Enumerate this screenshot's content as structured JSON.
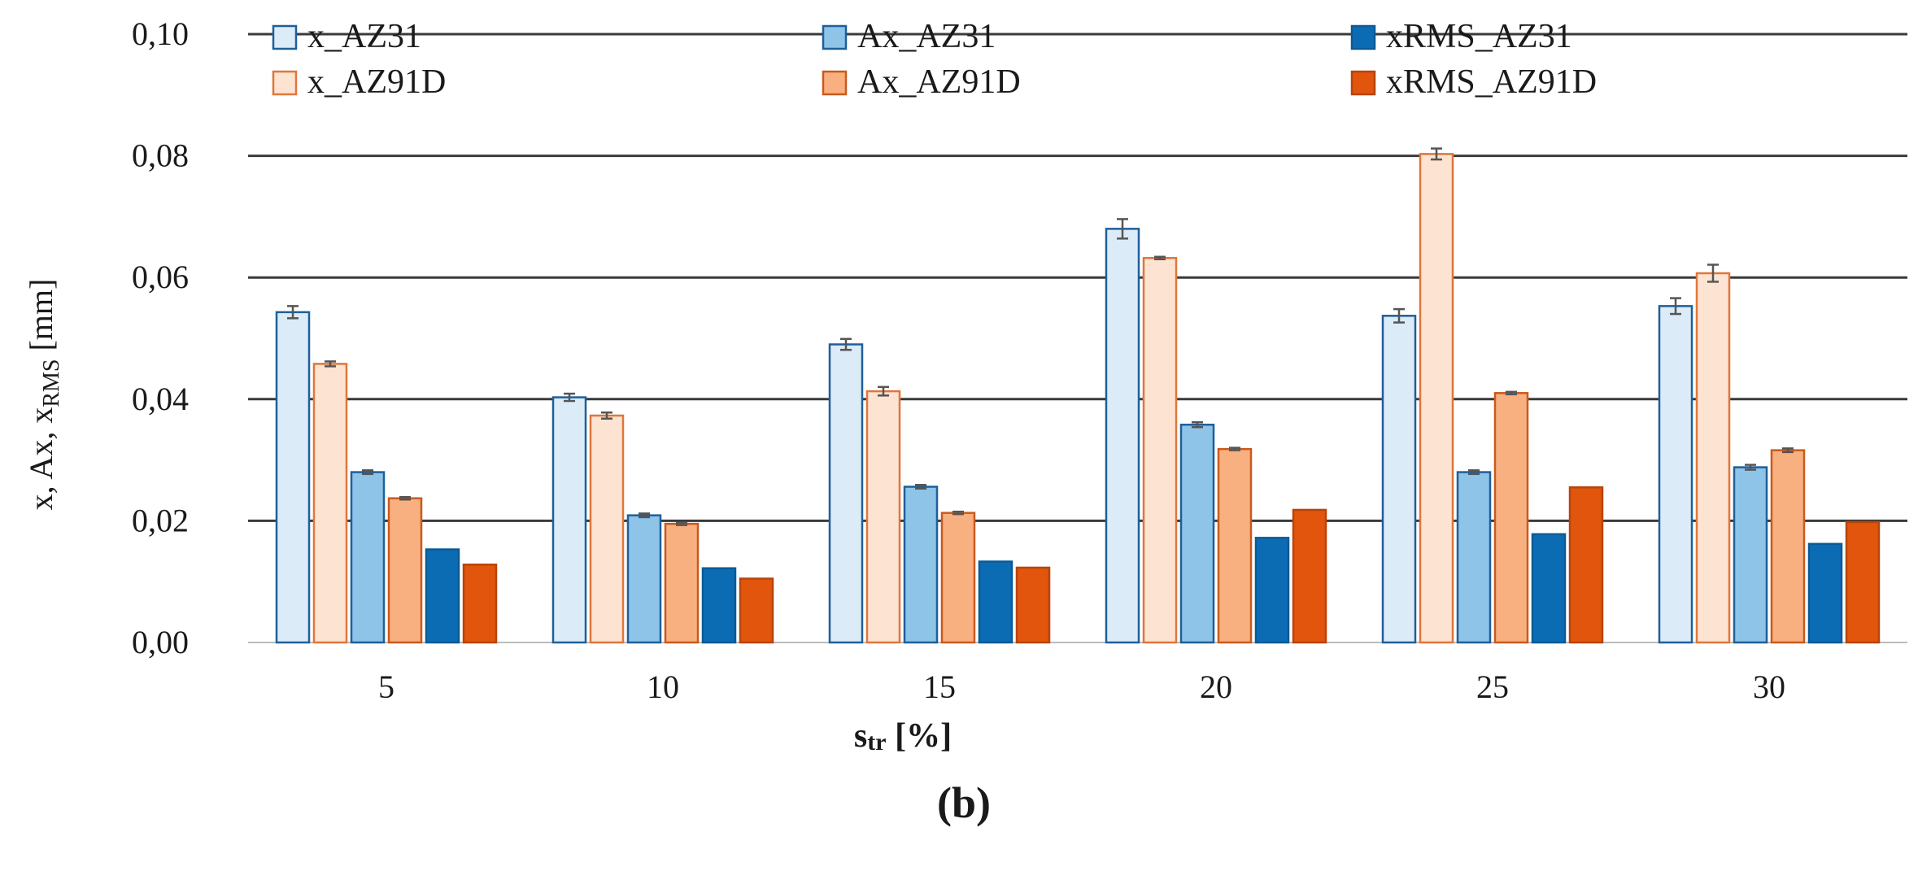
{
  "chart_data": {
    "type": "bar",
    "panel_label": "(b)",
    "title": "",
    "xlabel_main": "s",
    "xlabel_sub": "tr",
    "xlabel_unit": "[%]",
    "ylabel_main": "x, Ax, x",
    "ylabel_sub": "RMS",
    "ylabel_unit": "[mm]",
    "categories": [
      "5",
      "10",
      "15",
      "20",
      "25",
      "30"
    ],
    "ylim": [
      0,
      0.1
    ],
    "yticks": [
      0,
      0.02,
      0.04,
      0.06,
      0.08,
      0.1
    ],
    "ytick_labels": [
      "0,00",
      "0,02",
      "0,04",
      "0,06",
      "0,08",
      "0,10"
    ],
    "grid": true,
    "legend_position": "top",
    "series": [
      {
        "name": "x_AZ31",
        "fill": "#dcebf8",
        "stroke": "#1f5f99",
        "values": [
          0.0543,
          0.0403,
          0.049,
          0.068,
          0.0537,
          0.0553
        ],
        "errors": [
          0.001,
          0.0006,
          0.0009,
          0.0016,
          0.0011,
          0.0013
        ]
      },
      {
        "name": "x_AZ91D",
        "fill": "#fce3d2",
        "stroke": "#e0763a",
        "values": [
          0.0458,
          0.0373,
          0.0413,
          0.0632,
          0.0803,
          0.0607
        ],
        "errors": [
          0.0004,
          0.0005,
          0.0007,
          0.0002,
          0.0009,
          0.0014
        ]
      },
      {
        "name": "Ax_AZ31",
        "fill": "#8ec4e8",
        "stroke": "#1f5f99",
        "values": [
          0.028,
          0.0209,
          0.0256,
          0.0358,
          0.028,
          0.0288
        ],
        "errors": [
          0.0003,
          0.0003,
          0.0003,
          0.0004,
          0.0003,
          0.0004
        ]
      },
      {
        "name": "Ax_AZ91D",
        "fill": "#f8b081",
        "stroke": "#c95a1d",
        "values": [
          0.0237,
          0.0195,
          0.0213,
          0.0318,
          0.041,
          0.0316
        ],
        "errors": [
          0.0002,
          0.0002,
          0.0002,
          0.0002,
          0.0002,
          0.0003
        ]
      },
      {
        "name": "xRMS_AZ31",
        "fill": "#0c6cb3",
        "stroke": "#0a5a96",
        "values": [
          0.0153,
          0.0122,
          0.0133,
          0.0172,
          0.0178,
          0.0162
        ],
        "errors": [
          0,
          0,
          0,
          0,
          0,
          0
        ]
      },
      {
        "name": "xRMS_AZ91D",
        "fill": "#e1550d",
        "stroke": "#b9440a",
        "values": [
          0.0128,
          0.0105,
          0.0123,
          0.0218,
          0.0255,
          0.0198
        ],
        "errors": [
          0,
          0,
          0,
          0,
          0,
          0
        ]
      }
    ],
    "legend_order": [
      "x_AZ31",
      "Ax_AZ31",
      "xRMS_AZ31",
      "x_AZ91D",
      "Ax_AZ91D",
      "xRMS_AZ91D"
    ]
  }
}
